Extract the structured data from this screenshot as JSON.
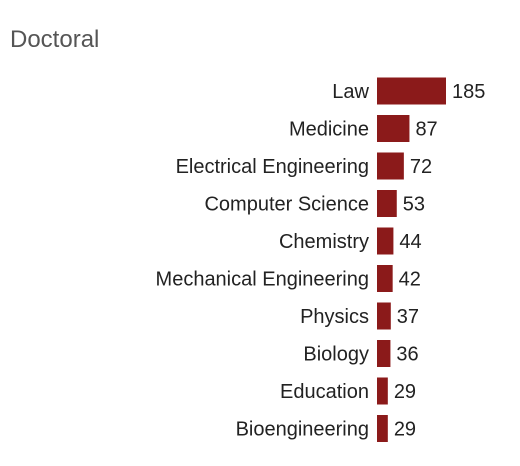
{
  "chart_data": {
    "type": "bar",
    "orientation": "horizontal",
    "title": "Doctoral",
    "categories": [
      "Law",
      "Medicine",
      "Electrical Engineering",
      "Computer Science",
      "Chemistry",
      "Mechanical Engineering",
      "Physics",
      "Biology",
      "Education",
      "Bioengineering"
    ],
    "values": [
      185,
      87,
      72,
      53,
      44,
      42,
      37,
      36,
      29,
      29
    ],
    "bar_color": "#8b1a1a",
    "xlim": [
      0,
      185
    ],
    "grid": false,
    "legend": "none"
  }
}
